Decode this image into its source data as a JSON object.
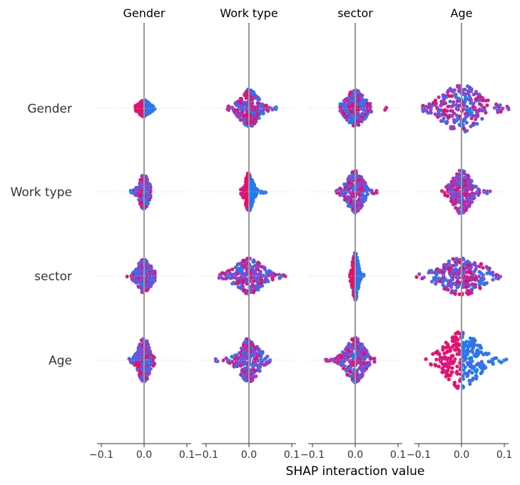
{
  "chart_data": {
    "type": "scatter",
    "title": "",
    "xlabel": "SHAP interaction value",
    "features": [
      "Gender",
      "Work type",
      "sector",
      "Age"
    ],
    "xlim": [
      -0.11,
      0.11
    ],
    "xticks": [
      -0.1,
      0.0,
      0.1
    ],
    "xtick_labels": [
      "−0.1",
      "0.0",
      "0.1"
    ],
    "grid": false,
    "legend": "none",
    "colors": {
      "low": "#008bfb",
      "high": "#ff0051",
      "mid": "#8f44d6"
    },
    "cells": [
      {
        "row": "Gender",
        "col": "Gender",
        "min": -0.02,
        "max": 0.025,
        "spread": 0.009,
        "peak": 0.2
      },
      {
        "row": "Gender",
        "col": "Work type",
        "min": -0.05,
        "max": 0.065,
        "spread": 0.016,
        "peak": 0.52
      },
      {
        "row": "Gender",
        "col": "sector",
        "min": -0.035,
        "max": 0.08,
        "spread": 0.016,
        "peak": 0.5
      },
      {
        "row": "Gender",
        "col": "Age",
        "min": -0.09,
        "max": 0.11,
        "spread": 0.035,
        "peak": 0.65
      },
      {
        "row": "Work type",
        "col": "Gender",
        "min": -0.035,
        "max": 0.015,
        "spread": 0.008,
        "peak": 0.48
      },
      {
        "row": "Work type",
        "col": "Work type",
        "min": -0.02,
        "max": 0.04,
        "spread": 0.007,
        "peak": 0.52
      },
      {
        "row": "Work type",
        "col": "sector",
        "min": -0.045,
        "max": 0.055,
        "spread": 0.014,
        "peak": 0.58
      },
      {
        "row": "Work type",
        "col": "Age",
        "min": -0.05,
        "max": 0.07,
        "spread": 0.016,
        "peak": 0.6
      },
      {
        "row": "sector",
        "col": "Gender",
        "min": -0.04,
        "max": 0.025,
        "spread": 0.012,
        "peak": 0.46
      },
      {
        "row": "sector",
        "col": "Work type",
        "min": -0.07,
        "max": 0.085,
        "spread": 0.024,
        "peak": 0.48
      },
      {
        "row": "sector",
        "col": "sector",
        "min": -0.015,
        "max": 0.02,
        "spread": 0.005,
        "peak": 0.66
      },
      {
        "row": "sector",
        "col": "Age",
        "min": -0.11,
        "max": 0.095,
        "spread": 0.038,
        "peak": 0.52
      },
      {
        "row": "Age",
        "col": "Gender",
        "min": -0.04,
        "max": 0.028,
        "spread": 0.01,
        "peak": 0.62
      },
      {
        "row": "Age",
        "col": "Work type",
        "min": -0.08,
        "max": 0.05,
        "spread": 0.018,
        "peak": 0.6
      },
      {
        "row": "Age",
        "col": "sector",
        "min": -0.07,
        "max": 0.045,
        "spread": 0.016,
        "peak": 0.62
      },
      {
        "row": "Age",
        "col": "Age",
        "min": -0.09,
        "max": 0.11,
        "spread": 0.03,
        "peak": 0.8
      }
    ]
  }
}
